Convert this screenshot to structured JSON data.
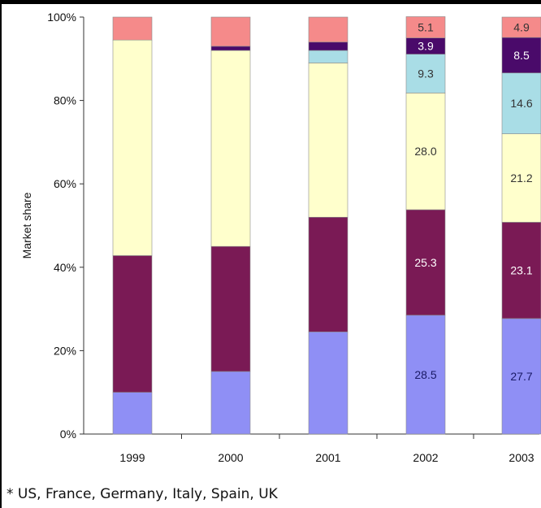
{
  "chart_data": {
    "type": "bar",
    "stacked": true,
    "categories": [
      "1999",
      "2000",
      "2001",
      "2002",
      "2003"
    ],
    "ylabel": "Market share",
    "xlabel": "",
    "ylim": [
      0,
      100
    ],
    "yticks": [
      "0%",
      "20%",
      "40%",
      "60%",
      "80%",
      "100%"
    ],
    "grid": false,
    "series": [
      {
        "key": "s1",
        "color": "#8F8FF5",
        "values": [
          10,
          15,
          24.5,
          28.5,
          27.7
        ],
        "labels": [
          "",
          "",
          "",
          "28.5",
          "27.7"
        ],
        "label_color": "#1a1a66"
      },
      {
        "key": "s2",
        "color": "#7A1A55",
        "values": [
          32.8,
          30,
          27.5,
          25.3,
          23.1
        ],
        "labels": [
          "",
          "",
          "",
          "25.3",
          "23.1"
        ],
        "label_color": "#ffffff"
      },
      {
        "key": "s3",
        "color": "#FFFFCC",
        "values": [
          51.7,
          47,
          37,
          28.0,
          21.2
        ],
        "labels": [
          "",
          "",
          "",
          "28.0",
          "21.2"
        ],
        "label_color": "#333333"
      },
      {
        "key": "s4",
        "color": "#A9DDE6",
        "values": [
          0,
          0,
          3,
          9.3,
          14.6
        ],
        "labels": [
          "",
          "",
          "",
          "9.3",
          "14.6"
        ],
        "label_color": "#333333"
      },
      {
        "key": "s5",
        "color": "#4A0A6A",
        "values": [
          0,
          1,
          2,
          3.9,
          8.5
        ],
        "labels": [
          "",
          "",
          "",
          "3.9",
          "8.5"
        ],
        "label_color": "#ffffff"
      },
      {
        "key": "s6",
        "color": "#F58A8A",
        "values": [
          5.5,
          7,
          6,
          5.1,
          4.9
        ],
        "labels": [
          "",
          "",
          "",
          "5.1",
          "4.9"
        ],
        "label_color": "#333333"
      }
    ]
  },
  "footnote": "* US, France, Germany, Italy, Spain, UK"
}
